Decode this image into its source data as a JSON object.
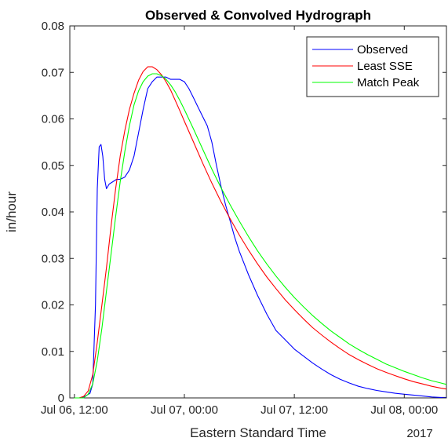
{
  "chart_data": {
    "type": "line",
    "title": "Observed & Convolved Hydrograph",
    "xlabel": "Eastern Standard Time",
    "ylabel": "in/hour",
    "x_secondary_label": "2017",
    "x_unit": "hours since Jul 06, 12:00",
    "xlim": [
      -0.5,
      40.6
    ],
    "ylim": [
      0,
      0.08
    ],
    "x_ticks": [
      {
        "value": 0,
        "label": "Jul 06, 12:00"
      },
      {
        "value": 12,
        "label": "Jul 07, 00:00"
      },
      {
        "value": 24,
        "label": "Jul 07, 12:00"
      },
      {
        "value": 36,
        "label": "Jul 08, 00:00"
      }
    ],
    "y_ticks": [
      {
        "value": 0,
        "label": "0"
      },
      {
        "value": 0.01,
        "label": "0.01"
      },
      {
        "value": 0.02,
        "label": "0.02"
      },
      {
        "value": 0.03,
        "label": "0.03"
      },
      {
        "value": 0.04,
        "label": "0.04"
      },
      {
        "value": 0.05,
        "label": "0.05"
      },
      {
        "value": 0.06,
        "label": "0.06"
      },
      {
        "value": 0.07,
        "label": "0.07"
      },
      {
        "value": 0.08,
        "label": "0.08"
      }
    ],
    "grid": false,
    "legend_position": "top-right",
    "series": [
      {
        "name": "Observed",
        "color": "#0000ff",
        "x": [
          -0.5,
          0.8,
          1.3,
          1.7,
          2.0,
          2.3,
          2.5,
          2.7,
          2.9,
          3.1,
          3.3,
          3.5,
          3.8,
          4.2,
          4.6,
          5.0,
          5.5,
          6.0,
          6.5,
          7.0,
          7.5,
          8.0,
          8.5,
          9.0,
          9.5,
          10.0,
          10.5,
          11.0,
          11.5,
          12.0,
          12.5,
          13.0,
          13.5,
          14.0,
          14.5,
          15.0,
          15.5,
          16.0,
          16.5,
          17.0,
          17.5,
          18.0,
          18.5,
          19.0,
          20.0,
          21.0,
          22.0,
          23.0,
          24.0,
          25.0,
          26.0,
          27.0,
          28.0,
          29.0,
          30.0,
          31.0,
          32.0,
          33.0,
          34.0,
          35.0,
          36.0,
          37.0,
          38.0,
          39.0,
          40.0,
          40.6
        ],
        "y": [
          0,
          0,
          0.0005,
          0.001,
          0.003,
          0.02,
          0.045,
          0.054,
          0.0545,
          0.052,
          0.047,
          0.045,
          0.046,
          0.0465,
          0.047,
          0.047,
          0.0475,
          0.049,
          0.052,
          0.057,
          0.062,
          0.0665,
          0.068,
          0.069,
          0.069,
          0.069,
          0.0685,
          0.0685,
          0.0685,
          0.068,
          0.0665,
          0.0645,
          0.0625,
          0.0605,
          0.0585,
          0.055,
          0.05,
          0.0455,
          0.0415,
          0.038,
          0.0345,
          0.0315,
          0.029,
          0.0265,
          0.022,
          0.018,
          0.0145,
          0.0125,
          0.0105,
          0.009,
          0.0075,
          0.0062,
          0.005,
          0.004,
          0.0032,
          0.0025,
          0.002,
          0.0016,
          0.0013,
          0.001,
          0.0008,
          0.0006,
          0.0004,
          0.0002,
          0.0001,
          0.0001
        ]
      },
      {
        "name": "Least SSE",
        "color": "#ff0000",
        "x": [
          -0.5,
          0.5,
          1.0,
          1.5,
          2.0,
          2.5,
          3.0,
          3.5,
          4.0,
          4.5,
          5.0,
          5.5,
          6.0,
          6.5,
          7.0,
          7.5,
          8.0,
          8.5,
          9.0,
          9.5,
          10.0,
          10.5,
          11.0,
          11.5,
          12.0,
          13.0,
          14.0,
          15.0,
          16.0,
          17.0,
          18.0,
          19.0,
          20.0,
          21.0,
          22.0,
          23.0,
          24.0,
          25.0,
          26.0,
          27.0,
          28.0,
          29.0,
          30.0,
          31.0,
          32.0,
          33.0,
          34.0,
          35.0,
          36.0,
          37.0,
          38.0,
          39.0,
          40.0,
          40.6
        ],
        "y": [
          0,
          0,
          0.0003,
          0.0015,
          0.005,
          0.012,
          0.02,
          0.028,
          0.037,
          0.045,
          0.052,
          0.0575,
          0.062,
          0.0655,
          0.0683,
          0.0702,
          0.0712,
          0.0712,
          0.0706,
          0.0695,
          0.068,
          0.0662,
          0.064,
          0.0618,
          0.0595,
          0.055,
          0.0505,
          0.0462,
          0.0422,
          0.0385,
          0.035,
          0.0318,
          0.0288,
          0.026,
          0.0235,
          0.0211,
          0.019,
          0.017,
          0.0151,
          0.0135,
          0.012,
          0.0106,
          0.0093,
          0.0082,
          0.0072,
          0.0063,
          0.0055,
          0.0048,
          0.0041,
          0.0035,
          0.003,
          0.0025,
          0.0021,
          0.0019
        ]
      },
      {
        "name": "Match Peak",
        "color": "#00ff00",
        "x": [
          -0.5,
          0.5,
          1.0,
          1.5,
          2.0,
          2.5,
          3.0,
          3.5,
          4.0,
          4.5,
          5.0,
          5.5,
          6.0,
          6.5,
          7.0,
          7.5,
          8.0,
          8.5,
          9.0,
          9.5,
          10.0,
          10.5,
          11.0,
          11.5,
          12.0,
          13.0,
          14.0,
          15.0,
          16.0,
          17.0,
          18.0,
          19.0,
          20.0,
          21.0,
          22.0,
          23.0,
          24.0,
          25.0,
          26.0,
          27.0,
          28.0,
          29.0,
          30.0,
          31.0,
          32.0,
          33.0,
          34.0,
          35.0,
          36.0,
          37.0,
          38.0,
          39.0,
          40.0,
          40.6
        ],
        "y": [
          0,
          0,
          0,
          0.0008,
          0.003,
          0.008,
          0.015,
          0.023,
          0.031,
          0.039,
          0.0465,
          0.053,
          0.0585,
          0.063,
          0.066,
          0.068,
          0.0692,
          0.0697,
          0.0697,
          0.0693,
          0.0685,
          0.0673,
          0.0658,
          0.064,
          0.062,
          0.0578,
          0.0535,
          0.0492,
          0.0452,
          0.0415,
          0.038,
          0.0347,
          0.0316,
          0.0288,
          0.0262,
          0.0238,
          0.0216,
          0.0196,
          0.0177,
          0.016,
          0.0144,
          0.013,
          0.0116,
          0.0104,
          0.0093,
          0.0083,
          0.0073,
          0.0065,
          0.0057,
          0.005,
          0.0043,
          0.0037,
          0.0032,
          0.0029
        ]
      }
    ]
  }
}
